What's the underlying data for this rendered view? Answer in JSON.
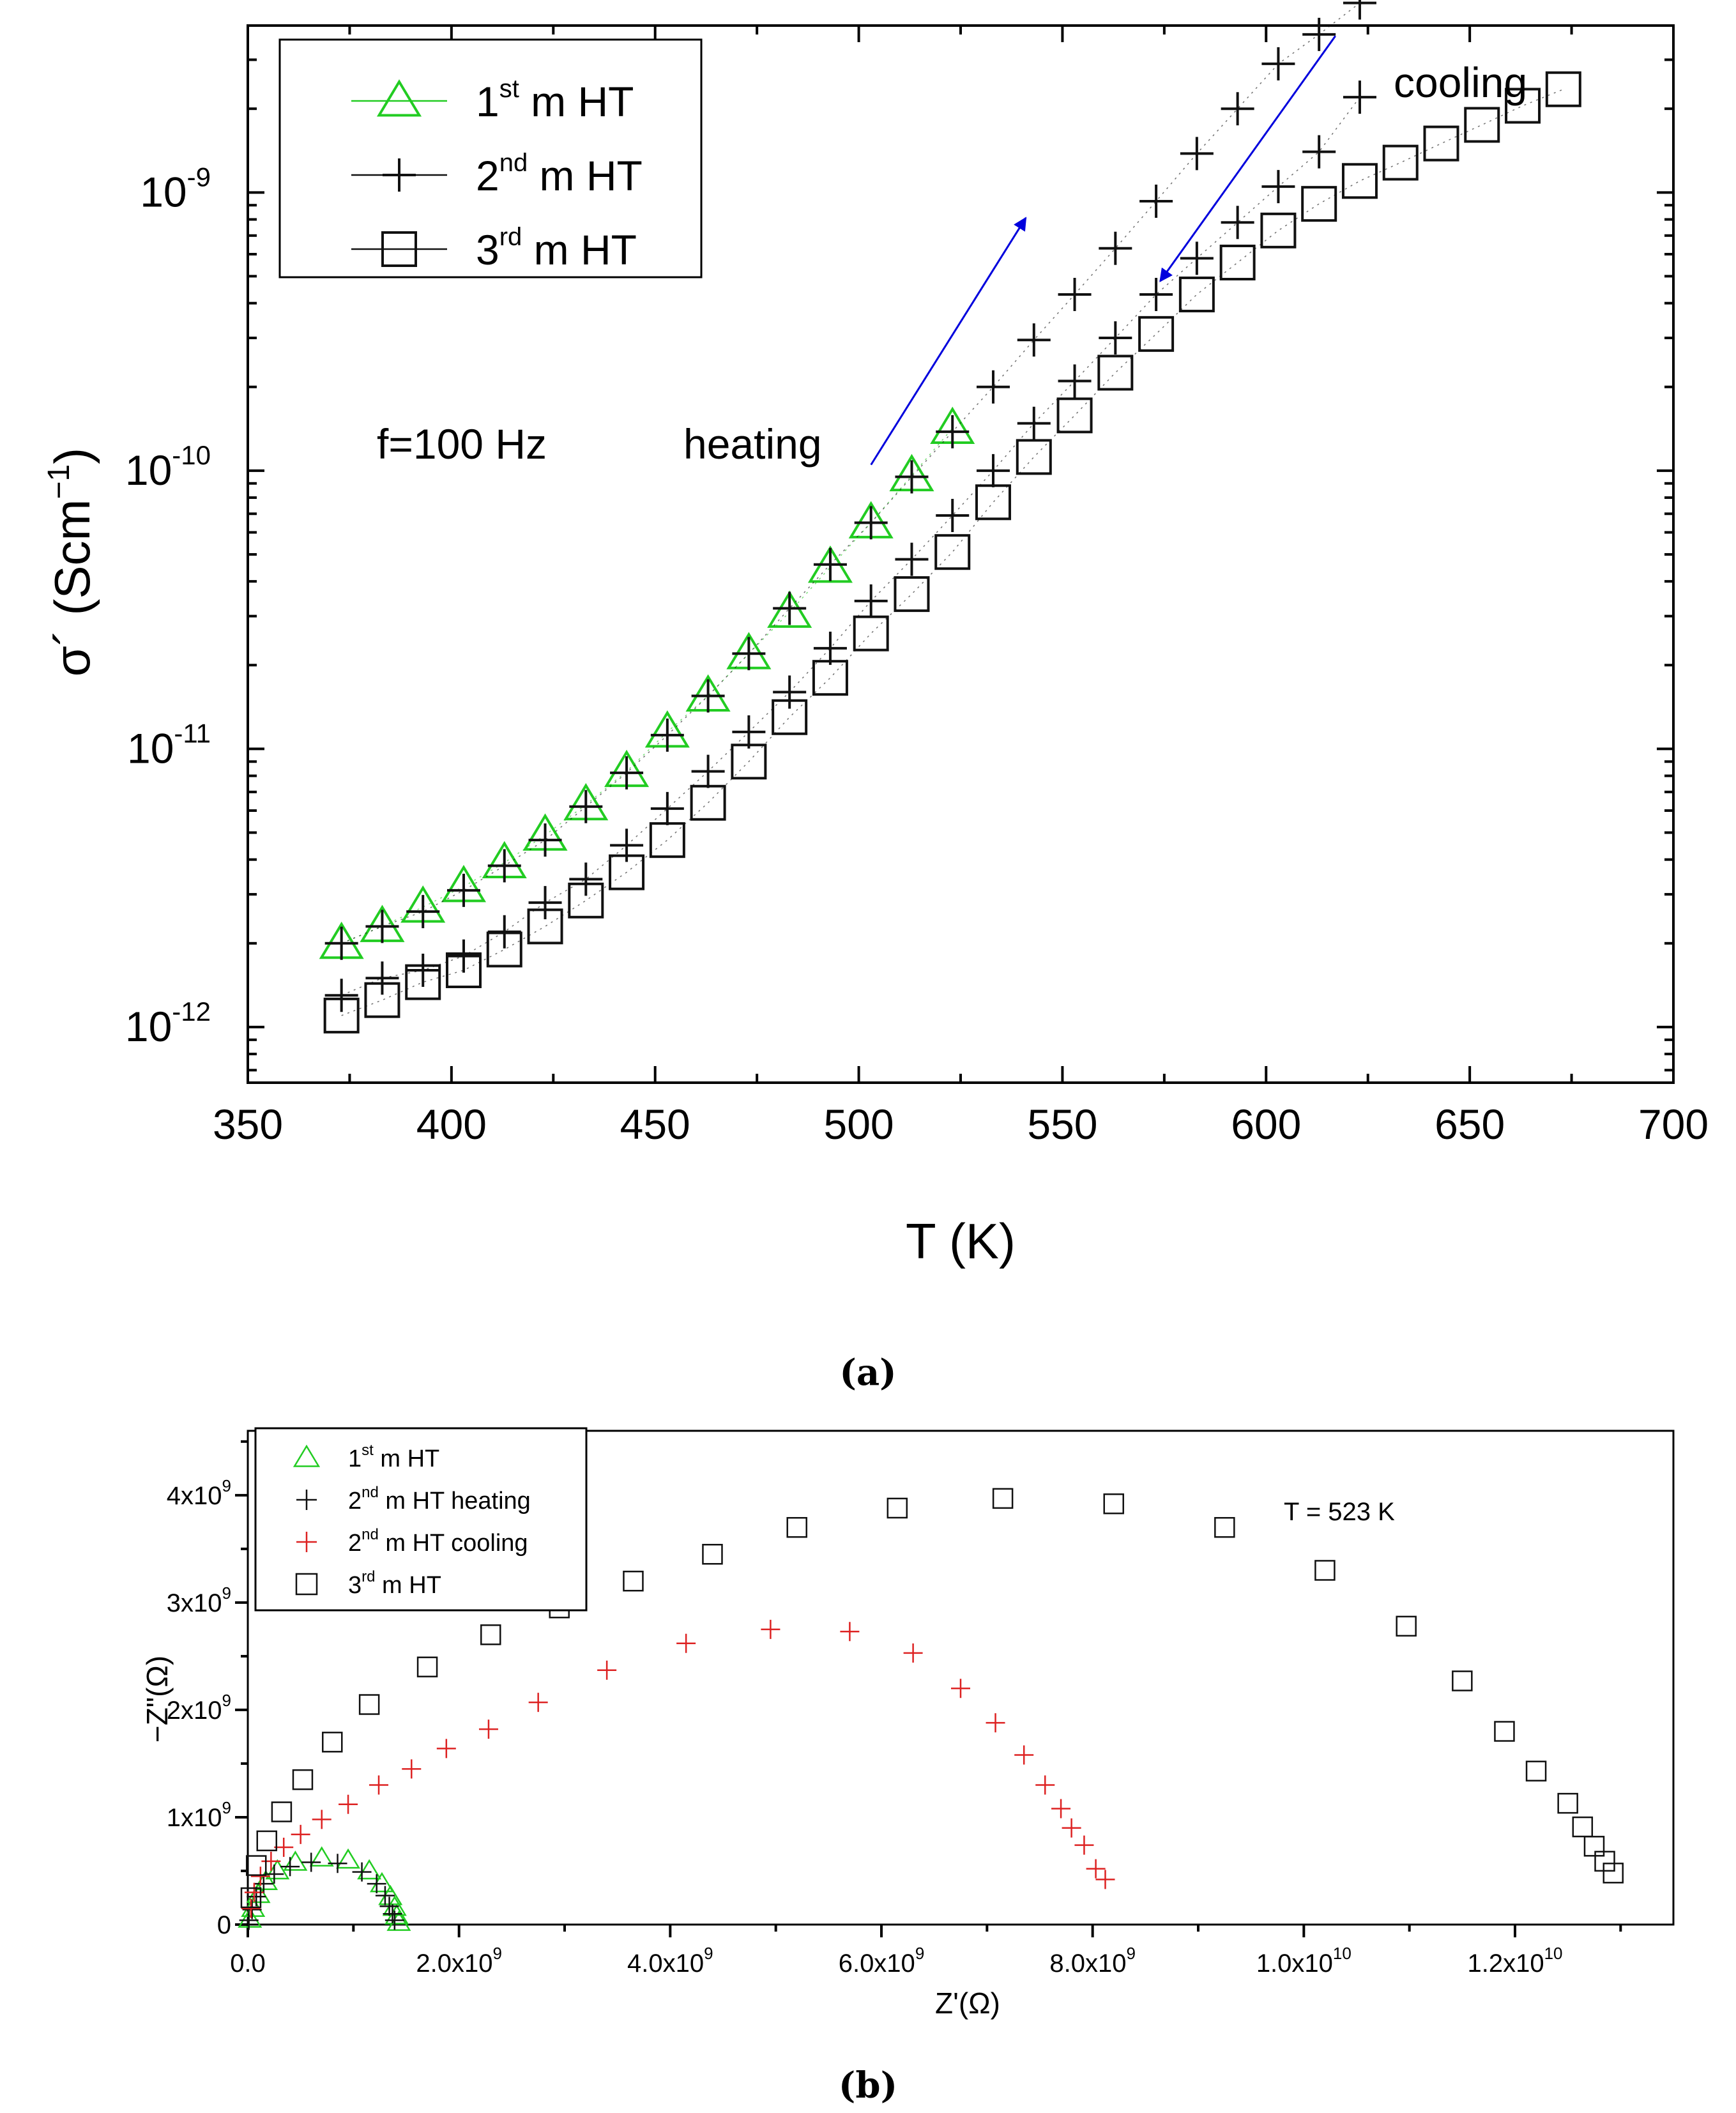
{
  "colors": {
    "green": "#22cc22",
    "black": "#111111",
    "red": "#dd2222",
    "blue": "#0000dd"
  },
  "panel_a_label": "(a)",
  "panel_b_label": "(b)",
  "chart_data": [
    {
      "type": "scatter",
      "panel": "a",
      "xlabel": "T (K)",
      "ylabel_main": "σ´ (Scm",
      "ylabel_sup": "−1",
      "ylabel_close": ")",
      "yscale": "log",
      "xlim": [
        350,
        700
      ],
      "ylim_exp": [
        -12.2,
        -8.4
      ],
      "x_ticks": [
        350,
        400,
        450,
        500,
        550,
        600,
        650,
        700
      ],
      "y_ticks": [
        {
          "base": "10",
          "exp": "-12",
          "value": -12
        },
        {
          "base": "10",
          "exp": "-11",
          "value": -11
        },
        {
          "base": "10",
          "exp": "-10",
          "value": -10
        },
        {
          "base": "10",
          "exp": "-9",
          "value": -9
        }
      ],
      "annotations": {
        "freq": "f=100 Hz",
        "heating": "heating",
        "cooling": "cooling"
      },
      "legend": [
        {
          "pre": "1",
          "sup": "st",
          "post": " m HT",
          "marker": "triangle",
          "color": "green"
        },
        {
          "pre": "2",
          "sup": "nd",
          "post": " m HT",
          "marker": "plus",
          "color": "black"
        },
        {
          "pre": "3",
          "sup": "rd",
          "post": " m HT",
          "marker": "square",
          "color": "black"
        }
      ],
      "series": [
        {
          "name": "1st m HT",
          "marker": "triangle",
          "color": "green",
          "x": [
            373,
            383,
            393,
            403,
            413,
            423,
            433,
            443,
            453,
            463,
            473,
            483,
            493,
            503,
            513,
            523
          ],
          "y": [
            2e-12,
            2.3e-12,
            2.7e-12,
            3.2e-12,
            3.9e-12,
            4.9e-12,
            6.3e-12,
            8.3e-12,
            1.15e-11,
            1.55e-11,
            2.2e-11,
            3.1e-11,
            4.5e-11,
            6.5e-11,
            9.6e-11,
            1.42e-10
          ]
        },
        {
          "name": "2nd m HT heating",
          "marker": "plus",
          "color": "black",
          "x": [
            373,
            383,
            393,
            403,
            413,
            423,
            433,
            443,
            453,
            463,
            473,
            483,
            493,
            503,
            513,
            523,
            533,
            543,
            553,
            563,
            573,
            583,
            593,
            603,
            613,
            623
          ],
          "y": [
            2e-12,
            2.3e-12,
            2.6e-12,
            3.1e-12,
            3.8e-12,
            4.7e-12,
            6.2e-12,
            8.2e-12,
            1.12e-11,
            1.55e-11,
            2.2e-11,
            3.2e-11,
            4.6e-11,
            6.5e-11,
            9.5e-11,
            1.38e-10,
            2e-10,
            2.95e-10,
            4.3e-10,
            6.3e-10,
            9.3e-10,
            1.38e-09,
            2e-09,
            2.9e-09,
            3.7e-09,
            4.8e-09
          ]
        },
        {
          "name": "2nd m HT cooling",
          "marker": "plus",
          "color": "black",
          "x": [
            623,
            613,
            603,
            593,
            583,
            573,
            563,
            553,
            543,
            533,
            523,
            513,
            503,
            493,
            483,
            473,
            463,
            453,
            443,
            433,
            423,
            413,
            403,
            393,
            383,
            373
          ],
          "y": [
            2.2e-09,
            1.4e-09,
            1.05e-09,
            7.8e-10,
            5.8e-10,
            4.3e-10,
            3e-10,
            2.1e-10,
            1.48e-10,
            1e-10,
            6.9e-11,
            4.8e-11,
            3.4e-11,
            2.3e-11,
            1.6e-11,
            1.15e-11,
            8.3e-12,
            6.1e-12,
            4.5e-12,
            3.4e-12,
            2.8e-12,
            2.2e-12,
            1.8e-12,
            1.6e-12,
            1.5e-12,
            1.3e-12
          ]
        },
        {
          "name": "3rd m HT",
          "marker": "square",
          "color": "black",
          "x": [
            373,
            383,
            393,
            403,
            413,
            423,
            433,
            443,
            453,
            463,
            473,
            483,
            493,
            503,
            513,
            523,
            533,
            543,
            553,
            563,
            573,
            583,
            593,
            603,
            613,
            623,
            633,
            643,
            653,
            663,
            673
          ],
          "y": [
            1.1e-12,
            1.25e-12,
            1.45e-12,
            1.6e-12,
            1.9e-12,
            2.3e-12,
            2.85e-12,
            3.6e-12,
            4.7e-12,
            6.4e-12,
            9e-12,
            1.3e-11,
            1.8e-11,
            2.6e-11,
            3.6e-11,
            5.1e-11,
            7.7e-11,
            1.12e-10,
            1.58e-10,
            2.25e-10,
            3.1e-10,
            4.3e-10,
            5.6e-10,
            7.3e-10,
            9.1e-10,
            1.1e-09,
            1.28e-09,
            1.5e-09,
            1.75e-09,
            2.05e-09,
            2.35e-09
          ]
        }
      ],
      "arrows": [
        {
          "name": "heating-arrow",
          "from": [
            503,
            1.05e-10
          ],
          "to": [
            541,
            8.1e-10
          ],
          "color": "blue"
        },
        {
          "name": "cooling-arrow",
          "from": [
            617,
            3.65e-09
          ],
          "to": [
            574,
            4.8e-10
          ],
          "color": "blue"
        }
      ]
    },
    {
      "type": "scatter",
      "panel": "b",
      "xlabel": "Z'(Ω)",
      "ylabel": "−Z\"(Ω)",
      "xlim": [
        0,
        13500000000.0
      ],
      "ylim": [
        0,
        4600000000.0
      ],
      "x_ticks": [
        {
          "value": 0,
          "mant": "0.0",
          "exp": ""
        },
        {
          "value": 2000000000.0,
          "mant": "2.0x10",
          "exp": "9"
        },
        {
          "value": 4000000000.0,
          "mant": "4.0x10",
          "exp": "9"
        },
        {
          "value": 6000000000.0,
          "mant": "6.0x10",
          "exp": "9"
        },
        {
          "value": 8000000000.0,
          "mant": "8.0x10",
          "exp": "9"
        },
        {
          "value": 10000000000.0,
          "mant": "1.0x10",
          "exp": "10"
        },
        {
          "value": 12000000000.0,
          "mant": "1.2x10",
          "exp": "10"
        }
      ],
      "y_ticks": [
        {
          "value": 0,
          "mant": "0",
          "exp": ""
        },
        {
          "value": 1000000000.0,
          "mant": "1x10",
          "exp": "9"
        },
        {
          "value": 2000000000.0,
          "mant": "2x10",
          "exp": "9"
        },
        {
          "value": 3000000000.0,
          "mant": "3x10",
          "exp": "9"
        },
        {
          "value": 4000000000.0,
          "mant": "4x10",
          "exp": "9"
        }
      ],
      "annotation": "T = 523 K",
      "legend": [
        {
          "pre": "1",
          "sup": "st",
          "post": " m HT",
          "marker": "triangle",
          "color": "green"
        },
        {
          "pre": "2",
          "sup": "nd",
          "post": " m HT heating",
          "marker": "plus",
          "color": "black"
        },
        {
          "pre": "2",
          "sup": "nd",
          "post": " m HT cooling",
          "marker": "plus",
          "color": "red"
        },
        {
          "pre": "3",
          "sup": "rd",
          "post": " m HT",
          "marker": "square",
          "color": "black"
        }
      ],
      "series": [
        {
          "name": "1st m HT",
          "marker": "triangle",
          "color": "green",
          "x": [
            20000000.0,
            50000000.0,
            100000000.0,
            170000000.0,
            280000000.0,
            450000000.0,
            700000000.0,
            950000000.0,
            1150000000.0,
            1270000000.0,
            1350000000.0,
            1390000000.0,
            1410000000.0,
            1430000000.0
          ],
          "y": [
            50000000.0,
            150000000.0,
            280000000.0,
            400000000.0,
            500000000.0,
            580000000.0,
            620000000.0,
            600000000.0,
            500000000.0,
            380000000.0,
            260000000.0,
            160000000.0,
            80000000.0,
            20000000.0
          ]
        },
        {
          "name": "2nd m HT heating",
          "marker": "plus",
          "color": "black",
          "x": [
            10000000.0,
            40000000.0,
            80000000.0,
            150000000.0,
            250000000.0,
            400000000.0,
            600000000.0,
            850000000.0,
            1080000000.0,
            1220000000.0,
            1300000000.0,
            1340000000.0,
            1370000000.0,
            1390000000.0
          ],
          "y": [
            40000000.0,
            140000000.0,
            260000000.0,
            380000000.0,
            470000000.0,
            540000000.0,
            580000000.0,
            570000000.0,
            490000000.0,
            380000000.0,
            270000000.0,
            170000000.0,
            100000000.0,
            40000000.0
          ]
        },
        {
          "name": "2nd m HT cooling",
          "marker": "plus",
          "color": "red",
          "x": [
            30000000.0,
            60000000.0,
            120000000.0,
            220000000.0,
            340000000.0,
            500000000.0,
            700000000.0,
            950000000.0,
            1240000000.0,
            1550000000.0,
            1880000000.0,
            2280000000.0,
            2750000000.0,
            3400000000.0,
            4150000000.0,
            4950000000.0,
            5700000000.0,
            6300000000.0,
            6750000000.0,
            7080000000.0,
            7350000000.0,
            7550000000.0,
            7700000000.0,
            7800000000.0,
            7920000000.0,
            8030000000.0,
            8120000000.0
          ],
          "y": [
            150000000.0,
            300000000.0,
            450000000.0,
            590000000.0,
            720000000.0,
            840000000.0,
            980000000.0,
            1120000000.0,
            1300000000.0,
            1450000000.0,
            1640000000.0,
            1820000000.0,
            2070000000.0,
            2370000000.0,
            2620000000.0,
            2750000000.0,
            2730000000.0,
            2530000000.0,
            2200000000.0,
            1880000000.0,
            1580000000.0,
            1300000000.0,
            1080000000.0,
            900000000.0,
            740000000.0,
            520000000.0,
            420000000.0
          ]
        },
        {
          "name": "3rd m HT",
          "marker": "square",
          "color": "black",
          "x": [
            30000000.0,
            80000000.0,
            180000000.0,
            320000000.0,
            520000000.0,
            800000000.0,
            1150000000.0,
            1700000000.0,
            2300000000.0,
            2950000000.0,
            3650000000.0,
            4400000000.0,
            5200000000.0,
            6150000000.0,
            7150000000.0,
            8200000000.0,
            9250000000.0,
            10200000000.0,
            10970000000.0,
            11500000000.0,
            11900000000.0,
            12200000000.0,
            12500000000.0,
            12640000000.0,
            12750000000.0,
            12850000000.0,
            12930000000.0
          ],
          "y": [
            250000000.0,
            550000000.0,
            780000000.0,
            1050000000.0,
            1350000000.0,
            1700000000.0,
            2050000000.0,
            2400000000.0,
            2700000000.0,
            2950000000.0,
            3200000000.0,
            3450000000.0,
            3700000000.0,
            3880000000.0,
            3970000000.0,
            3920000000.0,
            3700000000.0,
            3300000000.0,
            2780000000.0,
            2270000000.0,
            1800000000.0,
            1430000000.0,
            1130000000.0,
            910000000.0,
            730000000.0,
            590000000.0,
            480000000.0
          ]
        }
      ]
    }
  ]
}
